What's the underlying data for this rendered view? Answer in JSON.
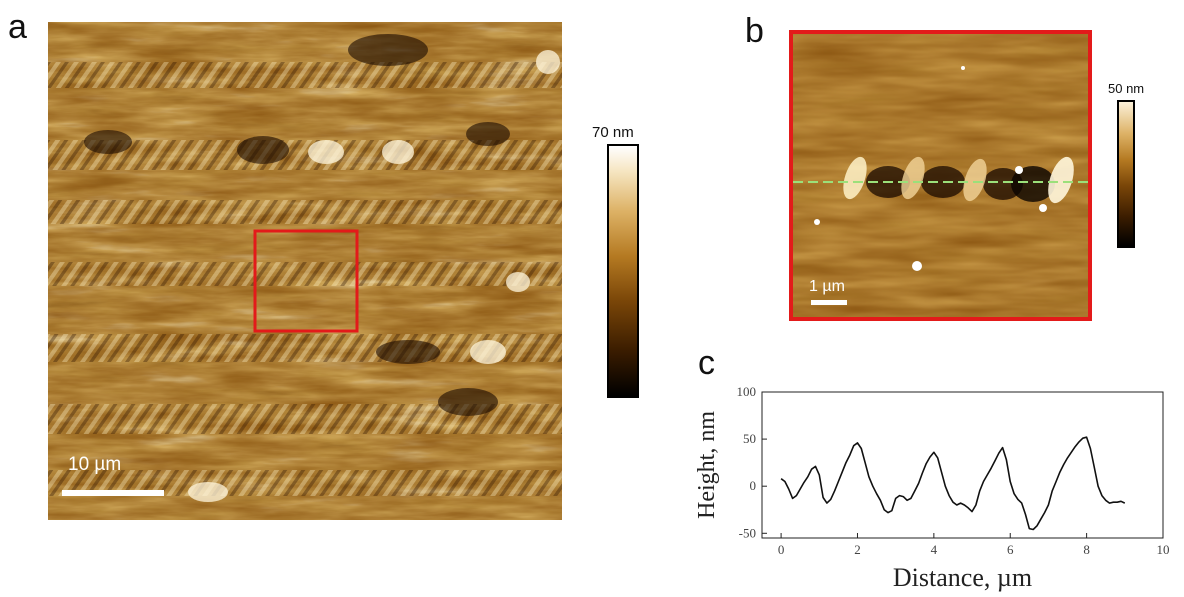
{
  "panels": {
    "a": {
      "letter": "a",
      "scale_bar": "10 µm",
      "colorbar_max": "70 nm",
      "highlight_color": "#e31a1a"
    },
    "b": {
      "letter": "b",
      "scale_bar": "1 µm",
      "colorbar_max": "50 nm",
      "border_color": "#e31a1a",
      "profile_line_color": "#9be07a"
    },
    "c": {
      "letter": "c"
    }
  },
  "colors": {
    "afm_dark": "#1a0a00",
    "afm_mid": "#8a5410",
    "afm_light": "#f6e6b8",
    "afm_white": "#ffffff"
  },
  "chart_data": {
    "type": "line",
    "title": "",
    "xlabel": "Distance, µm",
    "ylabel": "Height, nm",
    "xlim": [
      -0.5,
      10
    ],
    "ylim": [
      -55,
      100
    ],
    "xticks": [
      0,
      2,
      4,
      6,
      8,
      10
    ],
    "yticks": [
      -50,
      0,
      50,
      100
    ],
    "grid": false,
    "series": [
      {
        "x": [
          0,
          0.1,
          0.2,
          0.3,
          0.4,
          0.5,
          0.6,
          0.7,
          0.8,
          0.9,
          1.0,
          1.1,
          1.2,
          1.3,
          1.4,
          1.5,
          1.6,
          1.7,
          1.8,
          1.9,
          2.0,
          2.1,
          2.2,
          2.3,
          2.4,
          2.5,
          2.6,
          2.7,
          2.8,
          2.9,
          3.0,
          3.1,
          3.2,
          3.3,
          3.4,
          3.5,
          3.6,
          3.7,
          3.8,
          3.9,
          4.0,
          4.1,
          4.2,
          4.3,
          4.4,
          4.5,
          4.6,
          4.7,
          4.8,
          4.9,
          5.0,
          5.1,
          5.2,
          5.3,
          5.4,
          5.5,
          5.6,
          5.7,
          5.8,
          5.9,
          6.0,
          6.1,
          6.2,
          6.3,
          6.4,
          6.5,
          6.6,
          6.7,
          6.8,
          6.9,
          7.0,
          7.1,
          7.2,
          7.3,
          7.4,
          7.5,
          7.6,
          7.7,
          7.8,
          7.9,
          8.0,
          8.1,
          8.2,
          8.3,
          8.4,
          8.5,
          8.6,
          8.7,
          8.8,
          8.9,
          9.0
        ],
        "y": [
          8,
          5,
          -3,
          -13,
          -10,
          -3,
          4,
          10,
          18,
          21,
          12,
          -12,
          -18,
          -14,
          -5,
          5,
          15,
          25,
          33,
          43,
          46,
          40,
          25,
          10,
          0,
          -8,
          -15,
          -25,
          -28,
          -26,
          -13,
          -10,
          -11,
          -15,
          -13,
          -5,
          3,
          14,
          24,
          31,
          36,
          30,
          15,
          0,
          -10,
          -17,
          -20,
          -18,
          -20,
          -23,
          -27,
          -20,
          -5,
          5,
          12,
          19,
          27,
          35,
          41,
          28,
          5,
          -8,
          -14,
          -18,
          -30,
          -45,
          -46,
          -42,
          -35,
          -28,
          -20,
          -5,
          5,
          15,
          23,
          30,
          36,
          42,
          47,
          51,
          52,
          40,
          20,
          0,
          -10,
          -15,
          -18,
          -17,
          -17,
          -16,
          -18
        ]
      }
    ]
  }
}
